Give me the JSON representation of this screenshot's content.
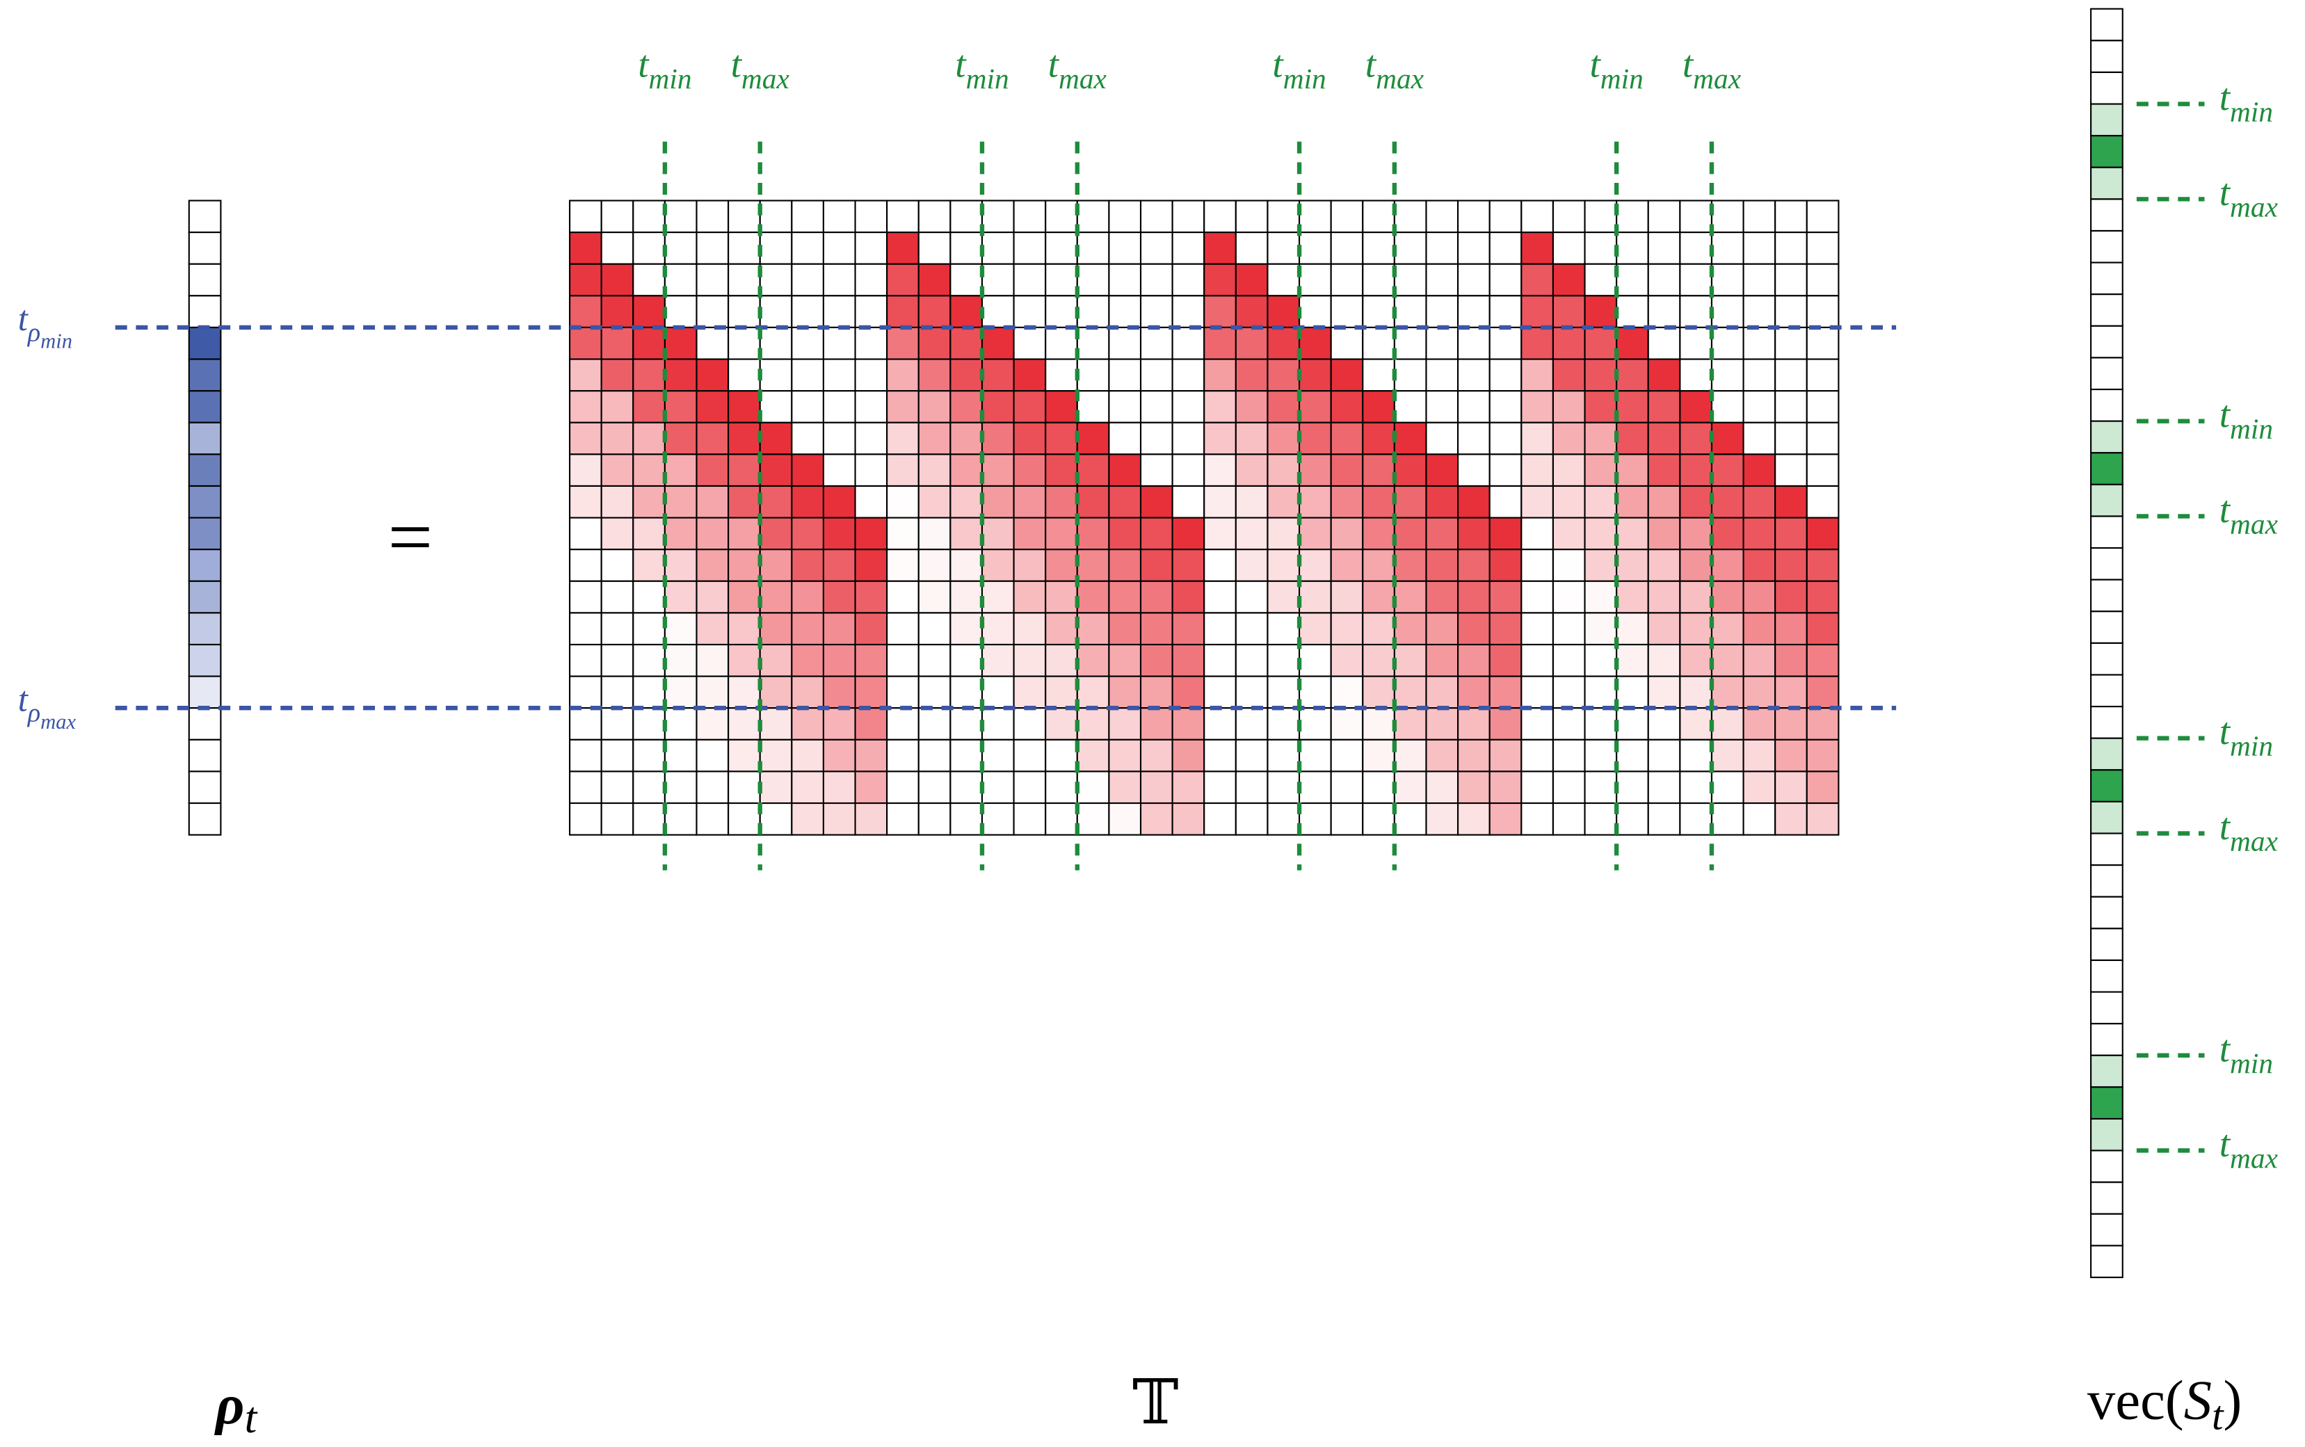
{
  "rho_label": {
    "symbol": "ρ",
    "sub": "t"
  },
  "equals": "=",
  "matrix_label": "𝕋",
  "vec_label": {
    "prefix": "vec(",
    "symbol": "S",
    "sub": "t",
    "suffix": ")"
  },
  "rho_lines": [
    {
      "base": "t",
      "sub": "ρ",
      "subsub": "min"
    },
    {
      "base": "t",
      "sub": "ρ",
      "subsub": "max"
    }
  ],
  "matrix_labels": [
    {
      "base": "t",
      "sub": "min"
    },
    {
      "base": "t",
      "sub": "max"
    },
    {
      "base": "t",
      "sub": "min"
    },
    {
      "base": "t",
      "sub": "max"
    },
    {
      "base": "t",
      "sub": "min"
    },
    {
      "base": "t",
      "sub": "max"
    },
    {
      "base": "t",
      "sub": "min"
    },
    {
      "base": "t",
      "sub": "max"
    }
  ],
  "vec_labels": [
    {
      "base": "t",
      "sub": "min"
    },
    {
      "base": "t",
      "sub": "max"
    },
    {
      "base": "t",
      "sub": "min"
    },
    {
      "base": "t",
      "sub": "max"
    },
    {
      "base": "t",
      "sub": "min"
    },
    {
      "base": "t",
      "sub": "max"
    },
    {
      "base": "t",
      "sub": "min"
    },
    {
      "base": "t",
      "sub": "max"
    }
  ]
}
